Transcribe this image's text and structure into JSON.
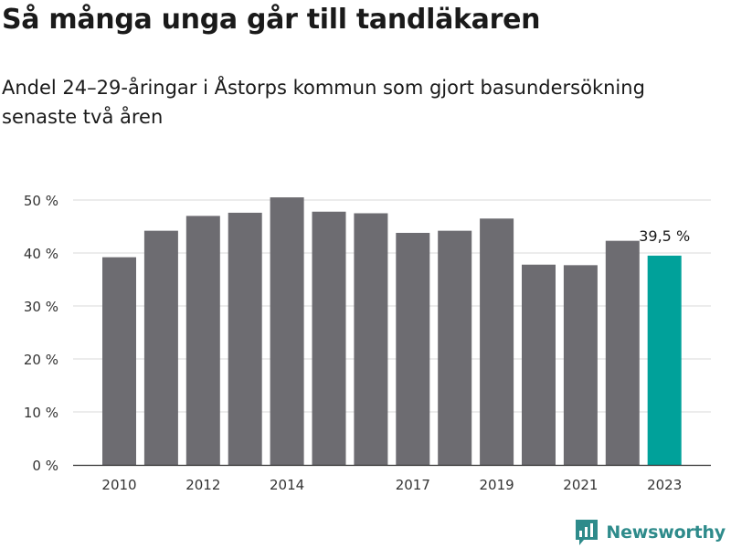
{
  "title": "Så många unga går till tandläkaren",
  "subtitle": "Andel 24–29-åringar i Åstorps kommun som gjort basundersökning senaste två åren",
  "brand": "Newsworthy",
  "chart_data": {
    "type": "bar",
    "title": "Så många unga går till tandläkaren",
    "subtitle": "Andel 24–29-åringar i Åstorps kommun som gjort basundersökning senaste två åren",
    "xlabel": "",
    "ylabel": "",
    "categories": [
      "2010",
      "2011",
      "2012",
      "2013",
      "2014",
      "2015",
      "2016",
      "2017",
      "2018",
      "2019",
      "2020",
      "2021",
      "2022",
      "2023"
    ],
    "x_tick_labels": [
      "2010",
      "2012",
      "2014",
      "2017",
      "2019",
      "2021",
      "2023"
    ],
    "values": [
      39.2,
      44.2,
      47.0,
      47.6,
      50.5,
      47.8,
      47.5,
      43.8,
      44.2,
      46.5,
      37.8,
      37.7,
      42.3,
      39.5
    ],
    "ylim": [
      0,
      50
    ],
    "y_ticks": [
      0,
      10,
      20,
      30,
      40,
      50
    ],
    "y_tick_labels": [
      "0 %",
      "10 %",
      "20 %",
      "30 %",
      "40 %",
      "50 %"
    ],
    "annotations": [
      {
        "category": "2023",
        "text": "39,5 %"
      }
    ],
    "highlight_category": "2023",
    "grid": true,
    "legend": "none",
    "colors": {
      "bar": "#6d6c71",
      "highlight": "#00a19a",
      "grid": "#d9d9d9",
      "axis": "#333333"
    }
  }
}
